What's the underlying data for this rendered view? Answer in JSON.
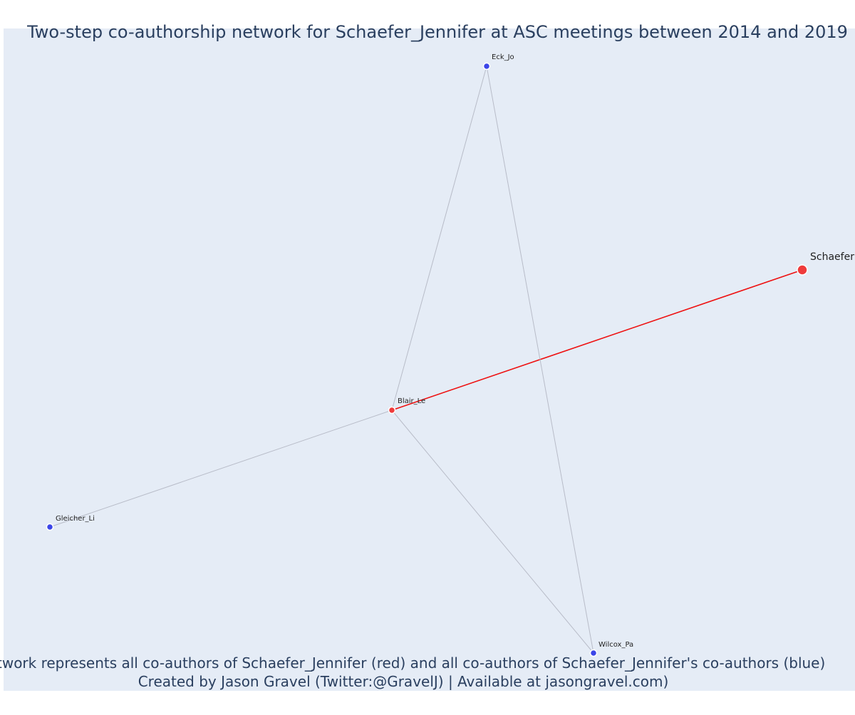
{
  "title": "Two-step co-authorship network for Schaefer_Jennifer at ASC meetings between 2014 and 2019",
  "caption": {
    "line1": "Network represents all co-authors of Schaefer_Jennifer (red) and all co-authors of Schaefer_Jennifer's co-authors (blue)",
    "line2": "Created by Jason Gravel (Twitter:@GravelJ) | Available at jasongravel.com)"
  },
  "colors": {
    "plot_background": "#e5ecf6",
    "text": "#2a3f5f",
    "focal_and_coauthor": "#ef3b3b",
    "second_step": "#3b45e8",
    "focal_edge": "#ee1111",
    "other_edge": "#b8bcc8"
  },
  "network": {
    "nodes": [
      {
        "id": "schaefer",
        "label": "Schaefer",
        "group": "focal"
      },
      {
        "id": "blair",
        "label": "Blair_Le",
        "group": "coauthor"
      },
      {
        "id": "eck",
        "label": "Eck_Jo",
        "group": "second_step"
      },
      {
        "id": "gleicher",
        "label": "Gleicher_Li",
        "group": "second_step"
      },
      {
        "id": "wilcox",
        "label": "Wilcox_Pa",
        "group": "second_step"
      }
    ],
    "edges": [
      {
        "source": "blair",
        "target": "schaefer",
        "type": "focal"
      },
      {
        "source": "blair",
        "target": "eck",
        "type": "other"
      },
      {
        "source": "blair",
        "target": "gleicher",
        "type": "other"
      },
      {
        "source": "blair",
        "target": "wilcox",
        "type": "other"
      },
      {
        "source": "eck",
        "target": "wilcox",
        "type": "other"
      }
    ]
  }
}
